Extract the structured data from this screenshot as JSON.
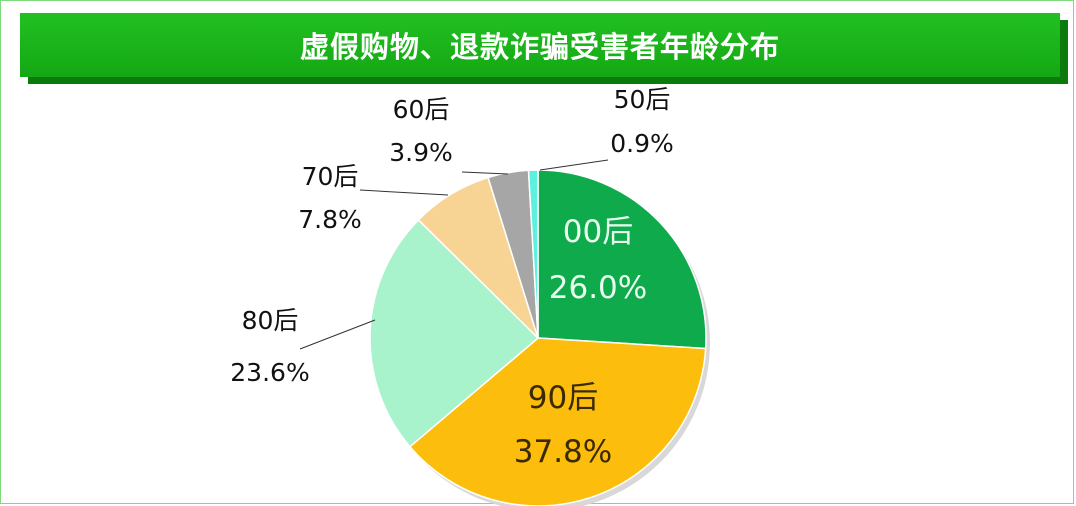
{
  "chart_data": {
    "type": "pie",
    "title": "虚假购物、退款诈骗受害者年龄分布",
    "slices": [
      {
        "label": "00后",
        "value": 26.0,
        "value_text": "26.0%",
        "color": "#0faa4b"
      },
      {
        "label": "90后",
        "value": 37.8,
        "value_text": "37.8%",
        "color": "#fcbd0c"
      },
      {
        "label": "80后",
        "value": 23.6,
        "value_text": "23.6%",
        "color": "#a8f2cc"
      },
      {
        "label": "70后",
        "value": 7.8,
        "value_text": "7.8%",
        "color": "#f8d494"
      },
      {
        "label": "60后",
        "value": 3.9,
        "value_text": "3.9%",
        "color": "#a6a6a6"
      },
      {
        "label": "50后",
        "value": 0.9,
        "value_text": "0.9%",
        "color": "#5ef0de"
      }
    ],
    "start_angle": "12 o'clock",
    "direction": "clockwise"
  }
}
